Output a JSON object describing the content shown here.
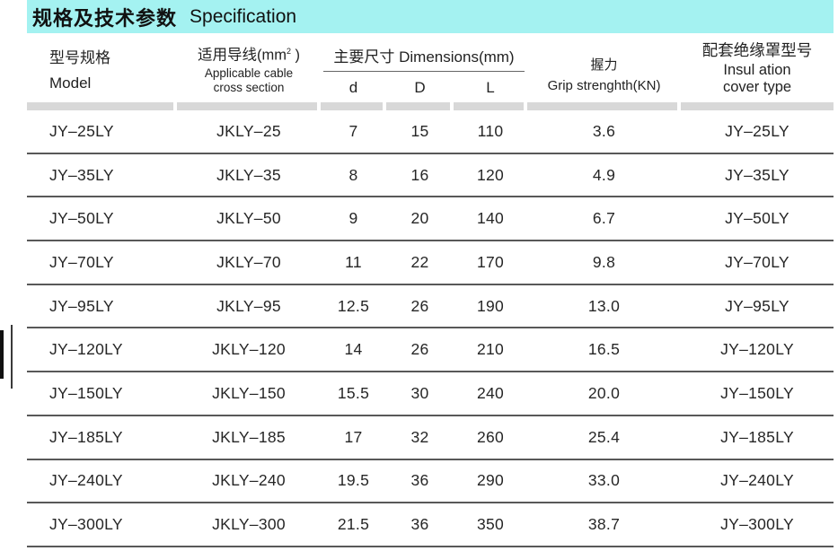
{
  "title": {
    "zh": "规格及技术参数",
    "en": "Specification"
  },
  "colors": {
    "title_bg": "#a4f2f1",
    "band_gray": "#d8d8d8",
    "row_line": "#585858",
    "text": "#262626"
  },
  "table": {
    "headers": {
      "model": {
        "zh": "型号规格",
        "en": "Model"
      },
      "cable": {
        "zh_prefix": "适用导线(mm",
        "sup": "2",
        "zh_suffix": " )",
        "en_line1": "Applicable cable",
        "en_line2": "cross section"
      },
      "dimensions": {
        "label": "主要尺寸 Dimensions(mm)",
        "sub": [
          "d",
          "D",
          "L"
        ]
      },
      "grip": {
        "zh": "握力",
        "en": "Grip strenghth(KN)"
      },
      "cover": {
        "zh": "配套绝缘罩型号",
        "en_line1": "Insul ation",
        "en_line2": "cover type"
      }
    },
    "rows": [
      {
        "model": "JY–25LY",
        "cable": "JKLY–25",
        "d": "7",
        "D": "15",
        "L": "110",
        "grip": "3.6",
        "cover": "JY–25LY"
      },
      {
        "model": "JY–35LY",
        "cable": "JKLY–35",
        "d": "8",
        "D": "16",
        "L": "120",
        "grip": "4.9",
        "cover": "JY–35LY"
      },
      {
        "model": "JY–50LY",
        "cable": "JKLY–50",
        "d": "9",
        "D": "20",
        "L": "140",
        "grip": "6.7",
        "cover": "JY–50LY"
      },
      {
        "model": "JY–70LY",
        "cable": "JKLY–70",
        "d": "11",
        "D": "22",
        "L": "170",
        "grip": "9.8",
        "cover": "JY–70LY"
      },
      {
        "model": "JY–95LY",
        "cable": "JKLY–95",
        "d": "12.5",
        "D": "26",
        "L": "190",
        "grip": "13.0",
        "cover": "JY–95LY"
      },
      {
        "model": "JY–120LY",
        "cable": "JKLY–120",
        "d": "14",
        "D": "26",
        "L": "210",
        "grip": "16.5",
        "cover": "JY–120LY"
      },
      {
        "model": "JY–150LY",
        "cable": "JKLY–150",
        "d": "15.5",
        "D": "30",
        "L": "240",
        "grip": "20.0",
        "cover": "JY–150LY"
      },
      {
        "model": "JY–185LY",
        "cable": "JKLY–185",
        "d": "17",
        "D": "32",
        "L": "260",
        "grip": "25.4",
        "cover": "JY–185LY"
      },
      {
        "model": "JY–240LY",
        "cable": "JKLY–240",
        "d": "19.5",
        "D": "36",
        "L": "290",
        "grip": "33.0",
        "cover": "JY–240LY"
      },
      {
        "model": "JY–300LY",
        "cable": "JKLY–300",
        "d": "21.5",
        "D": "36",
        "L": "350",
        "grip": "38.7",
        "cover": "JY–300LY"
      }
    ]
  }
}
